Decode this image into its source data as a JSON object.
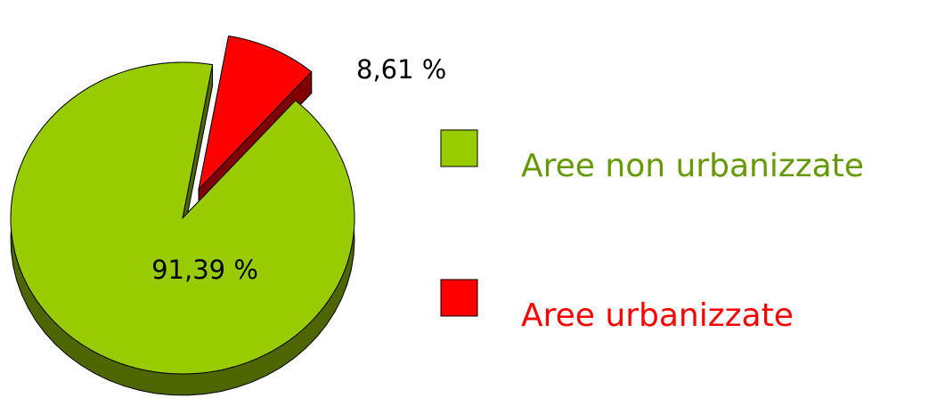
{
  "chart_data": {
    "type": "pie",
    "categories": [
      "Aree non urbanizzate",
      "Aree urbanizzate"
    ],
    "values": [
      91.39,
      8.61
    ],
    "value_labels": [
      "91,39 %",
      "8,61 %"
    ],
    "colors": [
      "#99cc00",
      "#ff0000"
    ],
    "legend_text_colors": [
      "#669900",
      "#ff0000"
    ],
    "legend": "right"
  }
}
